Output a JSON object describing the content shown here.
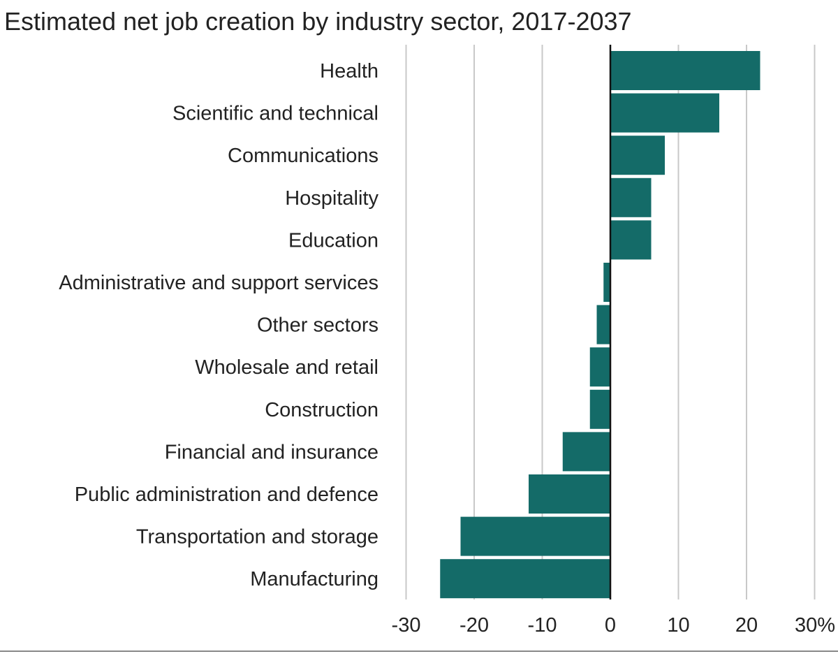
{
  "chart_data": {
    "type": "bar",
    "orientation": "horizontal",
    "title": "Estimated net job creation by industry sector, 2017-2037",
    "categories": [
      "Health",
      "Scientific and technical",
      "Communications",
      "Hospitality",
      "Education",
      "Administrative and support services",
      "Other sectors",
      "Wholesale and retail",
      "Construction",
      "Financial and insurance",
      "Public administration and defence",
      "Transportation and storage",
      "Manufacturing"
    ],
    "values": [
      22,
      16,
      8,
      6,
      6,
      -1,
      -2,
      -3,
      -3,
      -7,
      -12,
      -22,
      -25
    ],
    "xlim": [
      -30,
      30
    ],
    "ticks": [
      -30,
      -20,
      -10,
      0,
      10,
      20,
      30
    ],
    "tick_labels": [
      "-30",
      "-20",
      "-10",
      "0",
      "10",
      "20",
      "30%"
    ],
    "grid": true,
    "bar_color": "#146b68"
  }
}
